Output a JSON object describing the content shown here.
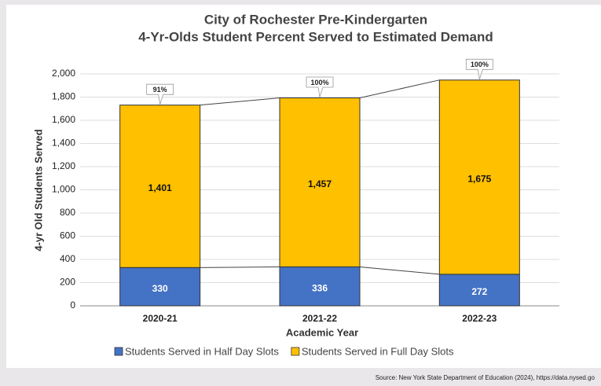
{
  "chart_data": {
    "type": "stacked_bar",
    "title": [
      "City of Rochester Pre-Kindergarten",
      "4-Yr-Olds Student Percent Served to Estimated Demand"
    ],
    "x_label": "Academic Year",
    "y_label": "4-yr Old Students Served",
    "categories": [
      "2020-21",
      "2021-22",
      "2022-23"
    ],
    "series": [
      {
        "name": "Students Served in Half Day Slots",
        "color": "#4472c4",
        "values": [
          330,
          336,
          272
        ]
      },
      {
        "name": "Students Served in Full Day Slots",
        "color": "#ffc000",
        "values": [
          1401,
          1457,
          1675
        ],
        "value_labels": [
          "1,401",
          "1,457",
          "1,675"
        ]
      }
    ],
    "percent_served": {
      "values": [
        91,
        100,
        100
      ],
      "value_labels": [
        "91%",
        "100%",
        "100%"
      ]
    },
    "ylim": [
      0,
      2000
    ],
    "yticks": [
      0,
      200,
      400,
      600,
      800,
      {
        "value": 1000,
        "label": "1,000"
      },
      {
        "value": 1200,
        "label": "1,200"
      },
      {
        "value": 1400,
        "label": "1,400"
      },
      {
        "value": 1600,
        "label": "1,600"
      },
      {
        "value": 1800,
        "label": "1,800"
      },
      {
        "value": 2000,
        "label": "2,000"
      }
    ],
    "grid": true,
    "legend": "bottom",
    "source": "Source: New York State Department of Education (2024), https://data.nysed.go"
  }
}
